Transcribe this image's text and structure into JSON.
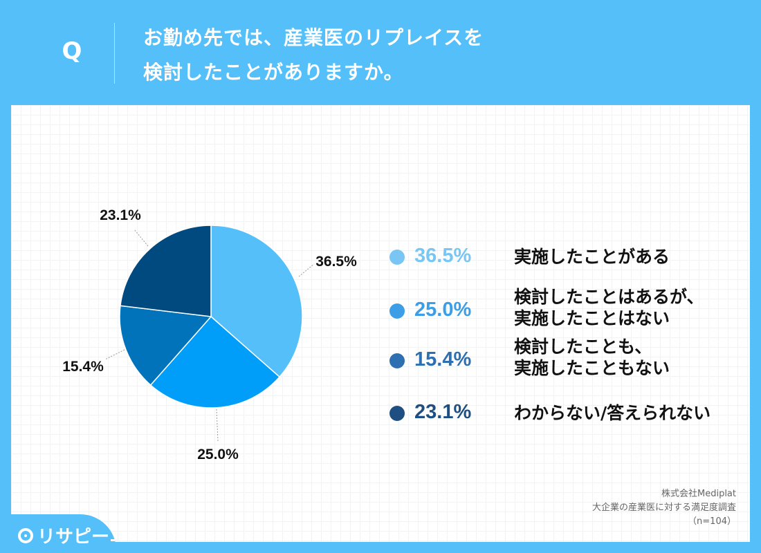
{
  "header": {
    "q_letter": "Q",
    "question_line1": "お勤め先では、産業医のリプレイスを",
    "question_line2": "検討したことがありますか。"
  },
  "chart_data": {
    "type": "pie",
    "categories": [
      "実施したことがある",
      "検討したことはあるが、実施したことはない",
      "検討したことも、実施したこともない",
      "わからない/答えられない"
    ],
    "values": [
      36.5,
      25.0,
      15.4,
      23.1
    ],
    "value_labels": [
      "36.5%",
      "25.0%",
      "15.4%",
      "23.1%"
    ],
    "colors": [
      "#55bffa",
      "#009df9",
      "#0073ba",
      "#004a80"
    ],
    "legend_position": "right"
  },
  "legend": {
    "items": [
      {
        "pct": "36.5%",
        "line1": "実施したことがある",
        "line2": "",
        "color": "#79c6f5",
        "text_color": "#79c6f5"
      },
      {
        "pct": "25.0%",
        "line1": "検討したことはあるが、",
        "line2": "実施したことはない",
        "color": "#3b9ee6",
        "text_color": "#3b9ee6"
      },
      {
        "pct": "15.4%",
        "line1": "検討したことも、",
        "line2": "実施したこともない",
        "color": "#2d6fb0",
        "text_color": "#2d6fb0"
      },
      {
        "pct": "23.1%",
        "line1": "わからない/答えられない",
        "line2": "",
        "color": "#1e4f82",
        "text_color": "#1e4f82"
      }
    ]
  },
  "source": {
    "company": "株式会社Mediplat",
    "survey": "大企業の産業医に対する満足度調査",
    "sample": "（n=104）"
  },
  "logo": {
    "text": "リサピー"
  }
}
